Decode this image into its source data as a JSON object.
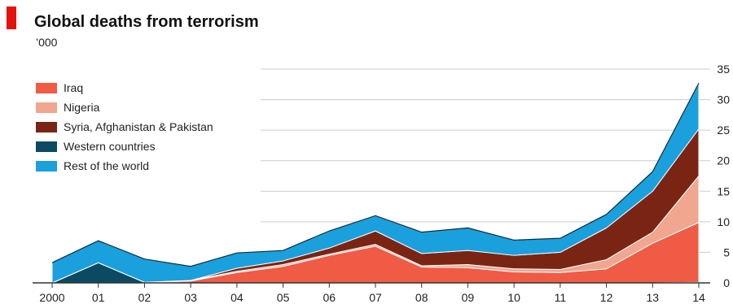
{
  "header": {
    "title": "Global deaths from terrorism",
    "subtitle": "’000"
  },
  "colors": {
    "iraq": "#ef5b45",
    "nigeria": "#f0a68f",
    "syria": "#7a2514",
    "western": "#0b4a63",
    "rest": "#1aa0dd",
    "grid": "#cccccc",
    "axis": "#333333"
  },
  "chart_data": {
    "type": "area",
    "stacked": true,
    "x": [
      "2000",
      "01",
      "02",
      "03",
      "04",
      "05",
      "06",
      "07",
      "08",
      "09",
      "10",
      "11",
      "12",
      "13",
      "14"
    ],
    "ylim": [
      0,
      35
    ],
    "yticks": [
      0,
      5,
      10,
      15,
      20,
      25,
      30,
      35
    ],
    "y_axis_side": "right",
    "grid": true,
    "legend_position": "top-left",
    "series": [
      {
        "name": "Western countries",
        "key": "western",
        "values": [
          0,
          3.3,
          0.1,
          0,
          0,
          0,
          0,
          0,
          0,
          0,
          0,
          0,
          0,
          0,
          0.1
        ]
      },
      {
        "name": "Iraq",
        "key": "iraq",
        "values": [
          0,
          0,
          0,
          0.3,
          1.7,
          2.7,
          4.5,
          6.0,
          2.6,
          2.5,
          1.8,
          1.7,
          2.3,
          6.5,
          9.8
        ]
      },
      {
        "name": "Nigeria",
        "key": "nigeria",
        "values": [
          0,
          0,
          0,
          0.1,
          0.2,
          0.3,
          0.2,
          0.3,
          0.2,
          0.5,
          0.5,
          0.5,
          1.5,
          1.8,
          7.6
        ]
      },
      {
        "name": "Syria, Afghanistan & Pakistan",
        "key": "syria",
        "values": [
          0,
          0,
          0,
          0,
          0.5,
          0.6,
          1.0,
          2.2,
          2.0,
          2.3,
          2.2,
          2.8,
          5.2,
          6.7,
          7.7
        ]
      },
      {
        "name": "Rest of the world",
        "key": "rest",
        "values": [
          3.3,
          3.6,
          3.8,
          2.3,
          2.5,
          1.7,
          2.8,
          2.5,
          3.5,
          3.7,
          2.5,
          2.3,
          2.2,
          3.2,
          7.5
        ]
      }
    ],
    "legend_order": [
      "iraq",
      "nigeria",
      "syria",
      "western",
      "rest"
    ]
  }
}
